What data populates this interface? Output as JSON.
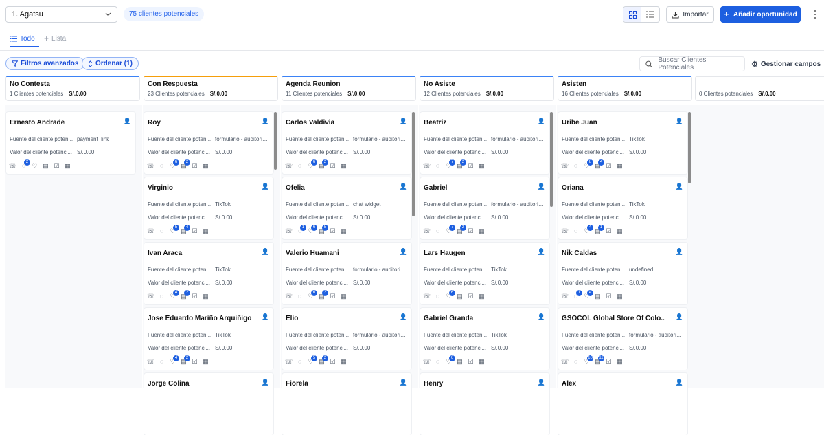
{
  "pipeline": {
    "name": "1. Agatsu"
  },
  "leads_pill": "75 clientes potenciales",
  "actions": {
    "import_label": "Importar",
    "add_label": "Añadir oportunidad"
  },
  "tabs": [
    {
      "label": "Todo"
    },
    {
      "label": "Lista"
    }
  ],
  "filters": {
    "advanced": "Filtros avanzados",
    "order": "Ordenar (1)"
  },
  "search": {
    "placeholder": "Buscar Clientes Potenciales"
  },
  "manage_fields": "Gestionar campos",
  "card_labels": {
    "source": "Fuente del cliente poten...",
    "value": "Valor del cliente potenci..."
  },
  "colors": {
    "accent": "#1d5fe0",
    "column_bars": [
      "#3b82f6",
      "#f59e0b",
      "#3b82f6",
      "#3b82f6",
      "#3b82f6",
      "#e5e7eb"
    ]
  },
  "columns": [
    {
      "title": "No Contesta",
      "count": "1 Clientes potenciales",
      "amount": "S/.0.00",
      "cards": [
        {
          "name": "Ernesto Andrade",
          "source": "payment_link",
          "value": "S/.0.00",
          "badges": [
            "",
            "2",
            "",
            "",
            ""
          ]
        }
      ]
    },
    {
      "title": "Con Respuesta",
      "count": "23 Clientes potenciales",
      "amount": "S/.0.00",
      "cards": [
        {
          "name": "Roy",
          "source": "formulario - auditoria - a...",
          "value": "S/.0.00",
          "badges": [
            "",
            "",
            "6",
            "2",
            "",
            ""
          ]
        },
        {
          "name": "Virginio",
          "source": "TikTok",
          "value": "S/.0.00",
          "badges": [
            "",
            "",
            "5",
            "4",
            "",
            ""
          ]
        },
        {
          "name": "Ivan Araca",
          "source": "TikTok",
          "value": "S/.0.00",
          "badges": [
            "",
            "",
            "4",
            "2",
            "",
            ""
          ]
        },
        {
          "name": "Jose Eduardo Mariño Arquiñigo",
          "source": "TikTok",
          "value": "S/.0.00",
          "badges": [
            "",
            "",
            "4",
            "2",
            "",
            ""
          ]
        },
        {
          "name": "Jorge Colina",
          "source": "",
          "value": "",
          "badges": []
        }
      ]
    },
    {
      "title": "Agenda Reunion",
      "count": "11 Clientes potenciales",
      "amount": "S/.0.00",
      "cards": [
        {
          "name": "Carlos Valdivia",
          "source": "formulario - auditoria - a...",
          "value": "S/.0.00",
          "badges": [
            "",
            "",
            "6",
            "2",
            "",
            ""
          ]
        },
        {
          "name": "Ofelia",
          "source": "chat widget",
          "value": "S/.0.00",
          "badges": [
            "",
            "1",
            "6",
            "5",
            "",
            ""
          ]
        },
        {
          "name": "Valerio Huamani",
          "source": "formulario - auditoria - a...",
          "value": "S/.0.00",
          "badges": [
            "",
            "",
            "6",
            "2",
            "",
            ""
          ]
        },
        {
          "name": "Elio",
          "source": "formulario - auditoria - a...",
          "value": "S/.0.00",
          "badges": [
            "",
            "",
            "5",
            "2",
            "",
            ""
          ]
        },
        {
          "name": "Fiorela",
          "source": "",
          "value": "",
          "badges": []
        }
      ]
    },
    {
      "title": "No Asiste",
      "count": "12 Clientes potenciales",
      "amount": "S/.0.00",
      "cards": [
        {
          "name": "Beatriz",
          "source": "formulario - auditoria - a...",
          "value": "S/.0.00",
          "badges": [
            "",
            "",
            "7",
            "2",
            "",
            ""
          ]
        },
        {
          "name": "Gabriel",
          "source": "formulario - auditoria - a...",
          "value": "S/.0.00",
          "badges": [
            "",
            "",
            "7",
            "2",
            "",
            ""
          ]
        },
        {
          "name": "Lars Haugen",
          "source": "TikTok",
          "value": "S/.0.00",
          "badges": [
            "",
            "",
            "6",
            "",
            "",
            ""
          ]
        },
        {
          "name": "Gabriel Granda",
          "source": "TikTok",
          "value": "S/.0.00",
          "badges": [
            "",
            "",
            "6",
            "",
            "",
            ""
          ]
        },
        {
          "name": "Henry",
          "source": "",
          "value": "",
          "badges": []
        }
      ]
    },
    {
      "title": "Asisten",
      "count": "16 Clientes potenciales",
      "amount": "S/.0.00",
      "cards": [
        {
          "name": "Uribe Juan",
          "source": "TikTok",
          "value": "S/.0.00",
          "badges": [
            "",
            "",
            "8",
            "4",
            "",
            ""
          ]
        },
        {
          "name": "Oriana",
          "source": "TikTok",
          "value": "S/.0.00",
          "badges": [
            "",
            "",
            "4",
            "1",
            "",
            ""
          ]
        },
        {
          "name": "Nik Caldas",
          "source": "undefined",
          "value": "S/.0.00",
          "badges": [
            "",
            "1",
            "4",
            "",
            "",
            ""
          ]
        },
        {
          "name": "GSOCOL Global Store Of Colo...",
          "source": "formulario - auditoria - a...",
          "value": "S/.0.00",
          "badges": [
            "",
            "",
            "10",
            "11",
            "",
            ""
          ]
        },
        {
          "name": "Alex",
          "source": "",
          "value": "",
          "badges": []
        }
      ]
    },
    {
      "title": "",
      "count": "0 Clientes potenciales",
      "amount": "S/.0.00",
      "cards": []
    }
  ]
}
